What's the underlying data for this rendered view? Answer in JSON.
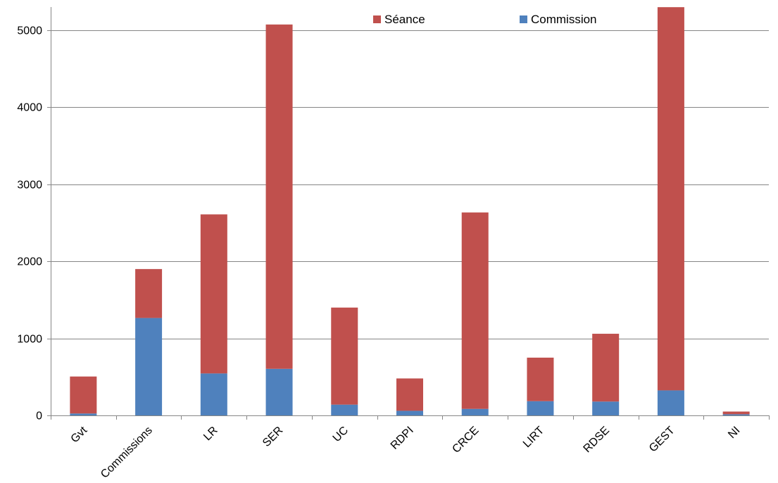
{
  "chart_data": {
    "type": "bar",
    "stacked": true,
    "title": "",
    "xlabel": "",
    "ylabel": "",
    "categories": [
      "Gvt",
      "Commissions",
      "LR",
      "SER",
      "UC",
      "RDPI",
      "CRCE",
      "LIRT",
      "RDSE",
      "GEST",
      "NI"
    ],
    "series": [
      {
        "name": "Commission",
        "color": "#4f81bd",
        "values": [
          25,
          1265,
          545,
          605,
          140,
          60,
          85,
          185,
          180,
          325,
          15
        ]
      },
      {
        "name": "Séance",
        "color": "#c0504d",
        "values": [
          480,
          635,
          2065,
          4470,
          1260,
          420,
          2550,
          565,
          880,
          4975,
          35
        ]
      }
    ],
    "legend": {
      "position": "top-right",
      "entries": [
        {
          "name": "Séance",
          "color": "#c0504d"
        },
        {
          "name": "Commission",
          "color": "#4f81bd"
        }
      ]
    },
    "ylim": [
      0,
      5300
    ],
    "yticks": [
      0,
      1000,
      2000,
      3000,
      4000,
      5000
    ],
    "grid": true,
    "gridline_color": "#868686",
    "axis_color": "#868686"
  }
}
